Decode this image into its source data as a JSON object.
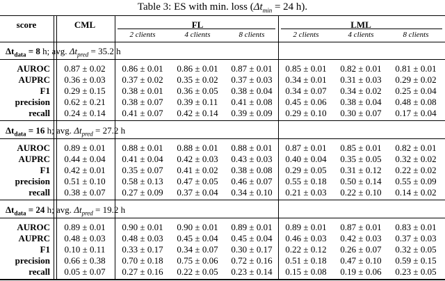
{
  "caption": {
    "prefix": "Table 3: ES with min. loss (",
    "var": "Δt",
    "sub": "min",
    "suffix": " = 24 h)."
  },
  "header": {
    "score": "score",
    "groups": [
      {
        "name": "CML",
        "subcolumns": []
      },
      {
        "name": "FL",
        "subcolumns": [
          "2 clients",
          "4 clients",
          "8 clients"
        ]
      },
      {
        "name": "LML",
        "subcolumns": [
          "2 clients",
          "4 clients",
          "8 clients"
        ]
      }
    ]
  },
  "sections": [
    {
      "heading": {
        "var1": "Δt",
        "sub1": "data",
        "value1": " = 8",
        "text1": " h; avg. ",
        "var2": "Δt",
        "sub2": "pred",
        "text2": " = 35.2 h"
      },
      "rows": [
        {
          "label": "AUROC",
          "cells": [
            "0.87 ± 0.02",
            "0.86 ± 0.01",
            "0.86 ± 0.01",
            "0.87 ± 0.01",
            "0.85 ± 0.01",
            "0.82 ± 0.01",
            "0.81 ± 0.01"
          ]
        },
        {
          "label": "AUPRC",
          "cells": [
            "0.36 ± 0.03",
            "0.37 ± 0.02",
            "0.35 ± 0.02",
            "0.37 ± 0.03",
            "0.34 ± 0.01",
            "0.31 ± 0.03",
            "0.29 ± 0.02"
          ]
        },
        {
          "label": "F1",
          "cells": [
            "0.29 ± 0.15",
            "0.38 ± 0.01",
            "0.36 ± 0.05",
            "0.38 ± 0.04",
            "0.34 ± 0.07",
            "0.34 ± 0.02",
            "0.25 ± 0.04"
          ]
        },
        {
          "label": "precision",
          "cells": [
            "0.62 ± 0.21",
            "0.38 ± 0.07",
            "0.39 ± 0.11",
            "0.41 ± 0.08",
            "0.45 ± 0.06",
            "0.38 ± 0.04",
            "0.48 ± 0.08"
          ]
        },
        {
          "label": "recall",
          "cells": [
            "0.24 ± 0.14",
            "0.41 ± 0.07",
            "0.42 ± 0.14",
            "0.39 ± 0.09",
            "0.29 ± 0.10",
            "0.30 ± 0.07",
            "0.17 ± 0.04"
          ]
        }
      ]
    },
    {
      "heading": {
        "var1": "Δt",
        "sub1": "data",
        "value1": " = 16",
        "text1": " h; avg. ",
        "var2": "Δt",
        "sub2": "pred",
        "text2": " = 27.2 h"
      },
      "rows": [
        {
          "label": "AUROC",
          "cells": [
            "0.89 ± 0.01",
            "0.88 ± 0.01",
            "0.88 ± 0.01",
            "0.88 ± 0.01",
            "0.87 ± 0.01",
            "0.85 ± 0.01",
            "0.82 ± 0.01"
          ]
        },
        {
          "label": "AUPRC",
          "cells": [
            "0.44 ± 0.04",
            "0.41 ± 0.04",
            "0.42 ± 0.03",
            "0.43 ± 0.03",
            "0.40 ± 0.04",
            "0.35 ± 0.05",
            "0.32 ± 0.02"
          ]
        },
        {
          "label": "F1",
          "cells": [
            "0.42 ± 0.01",
            "0.35 ± 0.07",
            "0.41 ± 0.02",
            "0.38 ± 0.08",
            "0.29 ± 0.05",
            "0.31 ± 0.12",
            "0.22 ± 0.02"
          ]
        },
        {
          "label": "precision",
          "cells": [
            "0.51 ± 0.10",
            "0.58 ± 0.13",
            "0.47 ± 0.05",
            "0.46 ± 0.07",
            "0.55 ± 0.18",
            "0.50 ± 0.14",
            "0.55 ± 0.09"
          ]
        },
        {
          "label": "recall",
          "cells": [
            "0.38 ± 0.07",
            "0.27 ± 0.09",
            "0.37 ± 0.04",
            "0.34 ± 0.10",
            "0.21 ± 0.03",
            "0.22 ± 0.10",
            "0.14 ± 0.02"
          ]
        }
      ]
    },
    {
      "heading": {
        "var1": "Δt",
        "sub1": "data",
        "value1": " = 24",
        "text1": " h; avg. ",
        "var2": "Δt",
        "sub2": "pred",
        "text2": " = 19.2 h"
      },
      "rows": [
        {
          "label": "AUROC",
          "cells": [
            "0.89 ± 0.01",
            "0.90 ± 0.01",
            "0.90 ± 0.01",
            "0.89 ± 0.01",
            "0.89 ± 0.01",
            "0.87 ± 0.01",
            "0.83 ± 0.01"
          ]
        },
        {
          "label": "AUPRC",
          "cells": [
            "0.48 ± 0.03",
            "0.48 ± 0.03",
            "0.45 ± 0.04",
            "0.45 ± 0.04",
            "0.46 ± 0.03",
            "0.42 ± 0.03",
            "0.37 ± 0.03"
          ]
        },
        {
          "label": "F1",
          "cells": [
            "0.10 ± 0.11",
            "0.33 ± 0.17",
            "0.34 ± 0.07",
            "0.30 ± 0.17",
            "0.22 ± 0.12",
            "0.26 ± 0.07",
            "0.32 ± 0.05"
          ]
        },
        {
          "label": "precision",
          "cells": [
            "0.66 ± 0.38",
            "0.70 ± 0.18",
            "0.75 ± 0.06",
            "0.72 ± 0.16",
            "0.51 ± 0.18",
            "0.47 ± 0.10",
            "0.59 ± 0.15"
          ]
        },
        {
          "label": "recall",
          "cells": [
            "0.05 ± 0.07",
            "0.27 ± 0.16",
            "0.22 ± 0.05",
            "0.23 ± 0.14",
            "0.15 ± 0.08",
            "0.19 ± 0.06",
            "0.23 ± 0.05"
          ]
        }
      ]
    }
  ]
}
